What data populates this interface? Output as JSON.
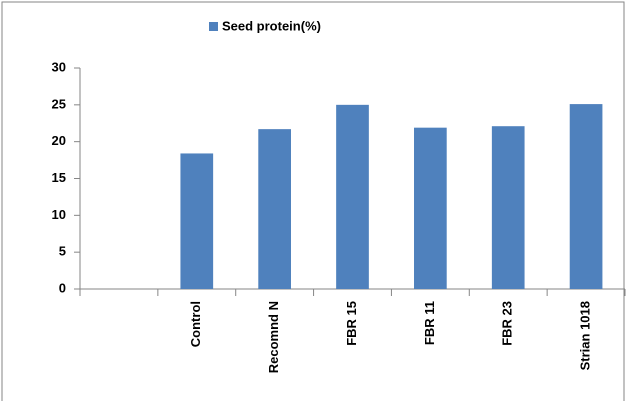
{
  "chart_data": {
    "type": "bar",
    "categories": [
      null,
      "Control",
      "Recomnd N",
      "FBR 15",
      "FBR 11",
      "FBR 23",
      "Strian 1018"
    ],
    "series": [
      {
        "name": "Seed protein(%)",
        "color": "#4f81bd",
        "values": [
          null,
          18.4,
          21.7,
          25.0,
          21.9,
          22.1,
          25.1
        ]
      }
    ],
    "ylim": [
      0,
      30
    ],
    "yticks": [
      0,
      5,
      10,
      15,
      20,
      25,
      30
    ],
    "grid": false,
    "legend": "top"
  }
}
